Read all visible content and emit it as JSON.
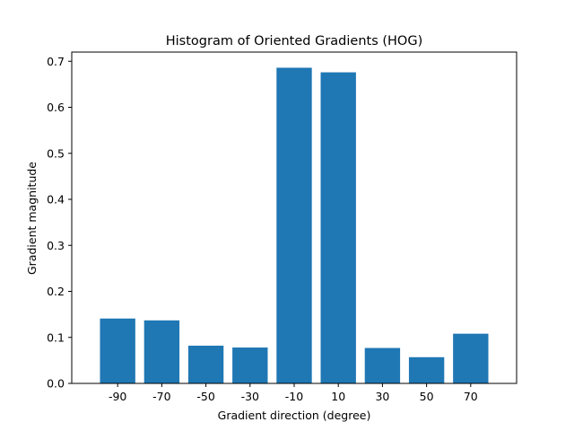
{
  "chart_data": {
    "type": "bar",
    "title": "Histogram of Oriented Gradients (HOG)",
    "xlabel": "Gradient direction (degree)",
    "ylabel": "Gradient magnitude",
    "categories": [
      "-90",
      "-70",
      "-50",
      "-30",
      "-10",
      "10",
      "30",
      "50",
      "70"
    ],
    "values": [
      0.141,
      0.137,
      0.082,
      0.078,
      0.686,
      0.676,
      0.077,
      0.057,
      0.108
    ],
    "ylim": [
      0,
      0.72
    ],
    "yticks": [
      "0.0",
      "0.1",
      "0.2",
      "0.3",
      "0.4",
      "0.5",
      "0.6",
      "0.7"
    ],
    "bar_color": "#1f77b4",
    "grid": false,
    "legend": false
  }
}
